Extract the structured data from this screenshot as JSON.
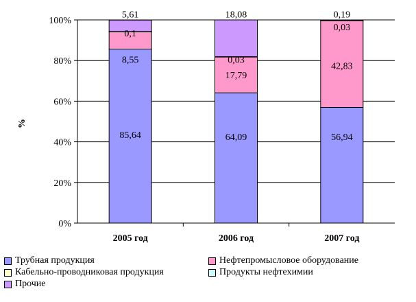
{
  "chart_data": {
    "type": "bar",
    "stacked": true,
    "categories": [
      "2005 год",
      "2006 год",
      "2007 год"
    ],
    "ylabel": "%",
    "ylim": [
      0,
      100
    ],
    "yticks": [
      "0%",
      "20%",
      "40%",
      "60%",
      "80%",
      "100%"
    ],
    "grid": true,
    "legend_position": "bottom",
    "series": [
      {
        "name": "Трубная продукция",
        "color": "#9999ff",
        "values": [
          85.64,
          64.09,
          56.94
        ],
        "labels": [
          "85,64",
          "64,09",
          "56,94"
        ]
      },
      {
        "name": "Нефтепромысловое оборудование",
        "color": "#ff99cc",
        "values": [
          8.55,
          17.79,
          42.83
        ],
        "labels": [
          "8,55",
          "17,79",
          "42,83"
        ]
      },
      {
        "name": "Кабельно-проводниковая продукция",
        "color": "#ffffcc",
        "values": [
          0.1,
          0.03,
          0.03
        ],
        "labels": [
          "0,1",
          "0,03",
          "0,03"
        ]
      },
      {
        "name": "Продукты нефтехимии",
        "color": "#ccffff",
        "values": [
          0,
          0,
          0
        ],
        "labels": [
          "",
          "",
          ""
        ]
      },
      {
        "name": "Прочие",
        "color": "#cc99ff",
        "values": [
          5.61,
          18.08,
          0.19
        ],
        "labels": [
          "5,61",
          "18,08",
          "0,19"
        ]
      }
    ]
  }
}
